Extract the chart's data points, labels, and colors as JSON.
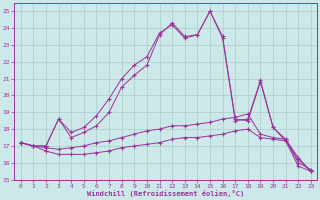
{
  "xlabel": "Windchill (Refroidissement éolien,°C)",
  "xlim": [
    -0.5,
    23.5
  ],
  "ylim": [
    15,
    25.5
  ],
  "yticks": [
    15,
    16,
    17,
    18,
    19,
    20,
    21,
    22,
    23,
    24,
    25
  ],
  "xticks": [
    0,
    1,
    2,
    3,
    4,
    5,
    6,
    7,
    8,
    9,
    10,
    11,
    12,
    13,
    14,
    15,
    16,
    17,
    18,
    19,
    20,
    21,
    22,
    23
  ],
  "background_color": "#cce8e8",
  "grid_color": "#aacccc",
  "line_color": "#993399",
  "series": {
    "curve1": [
      17.2,
      17.0,
      17.0,
      18.6,
      17.5,
      17.8,
      18.2,
      19.0,
      20.5,
      21.2,
      21.8,
      23.6,
      24.3,
      23.5,
      23.6,
      25.0,
      23.5,
      18.6,
      18.5,
      20.8,
      18.1,
      17.3,
      16.2,
      15.5
    ],
    "curve2": [
      17.2,
      17.0,
      17.0,
      18.6,
      17.8,
      18.1,
      18.8,
      19.8,
      21.0,
      21.8,
      22.3,
      23.7,
      24.2,
      23.4,
      23.6,
      25.0,
      23.4,
      18.5,
      18.6,
      20.9,
      18.1,
      17.4,
      16.3,
      15.5
    ],
    "flat1": [
      17.2,
      17.0,
      16.7,
      16.5,
      16.5,
      16.5,
      16.6,
      16.7,
      16.9,
      17.0,
      17.1,
      17.2,
      17.4,
      17.5,
      17.5,
      17.6,
      17.7,
      17.9,
      18.0,
      17.5,
      17.4,
      17.3,
      15.8,
      15.5
    ],
    "flat2": [
      17.2,
      17.0,
      16.9,
      16.8,
      16.9,
      17.0,
      17.2,
      17.3,
      17.5,
      17.7,
      17.9,
      18.0,
      18.2,
      18.2,
      18.3,
      18.4,
      18.6,
      18.7,
      18.9,
      17.7,
      17.5,
      17.4,
      16.0,
      15.6
    ]
  }
}
